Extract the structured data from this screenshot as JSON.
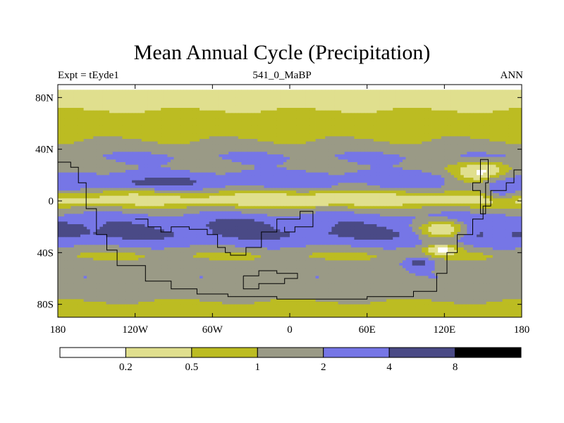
{
  "chart_data": {
    "type": "heatmap",
    "title": "Mean Annual Cycle (Precipitation)",
    "subtitle_left": "Expt = tEyde1",
    "subtitle_center": "541_0_MaBP",
    "subtitle_right": "ANN",
    "x_ticks": [
      "180",
      "120W",
      "60W",
      "0",
      "60E",
      "120E",
      "180"
    ],
    "x_tick_values": [
      -180,
      -120,
      -60,
      0,
      60,
      120,
      180
    ],
    "y_ticks": [
      "80N",
      "40N",
      "0",
      "40S",
      "80S"
    ],
    "y_tick_values": [
      80,
      40,
      0,
      -40,
      -80
    ],
    "xlim": [
      -180,
      180
    ],
    "ylim": [
      -90,
      90
    ],
    "colorbar": {
      "levels": [
        "0.2",
        "0.5",
        "1",
        "2",
        "4",
        "8"
      ],
      "colors": [
        "#ffffff",
        "#e0df8e",
        "#bcbc22",
        "#9a9a86",
        "#7676e6",
        "#4a4a86",
        "#000000"
      ]
    },
    "zonal_profile": [
      {
        "lat": 90,
        "value": 0.15
      },
      {
        "lat": 82,
        "value": 0.3
      },
      {
        "lat": 74,
        "value": 0.42
      },
      {
        "lat": 66,
        "value": 0.6
      },
      {
        "lat": 58,
        "value": 0.7
      },
      {
        "lat": 50,
        "value": 0.85
      },
      {
        "lat": 42,
        "value": 1.3
      },
      {
        "lat": 34,
        "value": 2.2
      },
      {
        "lat": 26,
        "value": 1.6
      },
      {
        "lat": 18,
        "value": 3.2
      },
      {
        "lat": 10,
        "value": 2.0
      },
      {
        "lat": 4,
        "value": 0.5
      },
      {
        "lat": 0,
        "value": 0.3
      },
      {
        "lat": -6,
        "value": 1.2
      },
      {
        "lat": -12,
        "value": 2.6
      },
      {
        "lat": -18,
        "value": 3.5
      },
      {
        "lat": -26,
        "value": 4.6
      },
      {
        "lat": -34,
        "value": 2.4
      },
      {
        "lat": -42,
        "value": 0.9
      },
      {
        "lat": -50,
        "value": 1.4
      },
      {
        "lat": -58,
        "value": 1.8
      },
      {
        "lat": -66,
        "value": 1.5
      },
      {
        "lat": -74,
        "value": 1.1
      },
      {
        "lat": -82,
        "value": 0.9
      },
      {
        "lat": -90,
        "value": 0.7
      }
    ],
    "features": [
      {
        "lon": 0,
        "lat": 0,
        "rlon": 38,
        "rlat": 3,
        "value": 0.15
      },
      {
        "lon": 40,
        "lat": 2,
        "rlon": 70,
        "rlat": 4,
        "value": 0.35
      },
      {
        "lon": 150,
        "lat": 22,
        "rlon": 22,
        "rlat": 8,
        "value": 0.15
      },
      {
        "lon": 118,
        "lat": -22,
        "rlon": 18,
        "rlat": 7,
        "value": 0.2
      },
      {
        "lon": 118,
        "lat": -38,
        "rlon": 12,
        "rlat": 4,
        "value": 0.15
      },
      {
        "lon": -176,
        "lat": -18,
        "rlon": 3,
        "rlat": 2.5,
        "value": 10
      },
      {
        "lon": -168,
        "lat": -22,
        "rlon": 12,
        "rlat": 6,
        "value": 5
      },
      {
        "lon": -40,
        "lat": -18,
        "rlon": 25,
        "rlat": 4,
        "value": 5
      },
      {
        "lon": -100,
        "lat": 14,
        "rlon": 40,
        "rlat": 4,
        "value": 5
      },
      {
        "lon": 100,
        "lat": -48,
        "rlon": 12,
        "rlat": 5,
        "value": 5
      },
      {
        "lon": 165,
        "lat": 10,
        "rlon": 14,
        "rlat": 10,
        "value": 3
      },
      {
        "lon": 160,
        "lat": -22,
        "rlon": 12,
        "rlat": 10,
        "value": 3
      }
    ],
    "land_outlines": [
      {
        "name": "western-continent",
        "points": [
          [
            -180,
            30
          ],
          [
            -170,
            30
          ],
          [
            -170,
            26
          ],
          [
            -164,
            26
          ],
          [
            -164,
            14
          ],
          [
            -158,
            14
          ],
          [
            -158,
            -6
          ],
          [
            -150,
            -6
          ],
          [
            -150,
            -26
          ],
          [
            -142,
            -26
          ],
          [
            -142,
            -38
          ],
          [
            -134,
            -38
          ],
          [
            -134,
            -50
          ],
          [
            -112,
            -50
          ],
          [
            -112,
            -62
          ],
          [
            -92,
            -62
          ],
          [
            -92,
            -68
          ],
          [
            -72,
            -68
          ],
          [
            -72,
            -72
          ],
          [
            -48,
            -72
          ],
          [
            -48,
            -74
          ],
          [
            -10,
            -74
          ],
          [
            -10,
            -76
          ],
          [
            60,
            -76
          ],
          [
            60,
            -74
          ],
          [
            96,
            -74
          ],
          [
            96,
            -70
          ],
          [
            114,
            -70
          ],
          [
            114,
            -56
          ],
          [
            122,
            -56
          ],
          [
            122,
            -40
          ],
          [
            130,
            -40
          ],
          [
            130,
            -26
          ],
          [
            142,
            -26
          ],
          [
            142,
            -14
          ],
          [
            150,
            -14
          ],
          [
            150,
            -4
          ],
          [
            156,
            -4
          ],
          [
            156,
            8
          ],
          [
            168,
            8
          ],
          [
            168,
            14
          ],
          [
            174,
            14
          ],
          [
            174,
            24
          ],
          [
            180,
            24
          ]
        ]
      },
      {
        "name": "inner-outline",
        "points": [
          [
            -120,
            -14
          ],
          [
            -110,
            -14
          ],
          [
            -110,
            -20
          ],
          [
            -100,
            -20
          ],
          [
            -100,
            -24
          ],
          [
            -92,
            -24
          ],
          [
            -92,
            -20
          ],
          [
            -78,
            -20
          ],
          [
            -78,
            -22
          ],
          [
            -64,
            -22
          ],
          [
            -64,
            -26
          ],
          [
            -56,
            -26
          ],
          [
            -56,
            -36
          ],
          [
            -50,
            -36
          ],
          [
            -50,
            -40
          ],
          [
            -46,
            -40
          ],
          [
            -46,
            -42
          ],
          [
            -34,
            -42
          ],
          [
            -34,
            -36
          ],
          [
            -22,
            -36
          ],
          [
            -22,
            -24
          ],
          [
            -10,
            -24
          ],
          [
            -10,
            -14
          ],
          [
            8,
            -14
          ],
          [
            8,
            -8
          ],
          [
            18,
            -8
          ],
          [
            18,
            -20
          ],
          [
            4,
            -20
          ],
          [
            4,
            -24
          ],
          [
            -4,
            -24
          ],
          [
            -4,
            -20
          ]
        ]
      },
      {
        "name": "southern-loop",
        "points": [
          [
            -36,
            -58
          ],
          [
            -24,
            -58
          ],
          [
            -24,
            -54
          ],
          [
            -10,
            -54
          ],
          [
            -10,
            -56
          ],
          [
            6,
            -56
          ],
          [
            6,
            -60
          ],
          [
            -4,
            -60
          ],
          [
            -4,
            -64
          ],
          [
            -24,
            -64
          ],
          [
            -24,
            -68
          ],
          [
            -36,
            -68
          ],
          [
            -36,
            -58
          ]
        ]
      },
      {
        "name": "eastern-island",
        "points": [
          [
            148,
            14
          ],
          [
            148,
            32
          ],
          [
            154,
            32
          ],
          [
            154,
            14
          ],
          [
            152,
            14
          ],
          [
            152,
            -10
          ],
          [
            148,
            -10
          ],
          [
            148,
            8
          ],
          [
            142,
            8
          ],
          [
            142,
            14
          ],
          [
            148,
            14
          ]
        ]
      }
    ]
  }
}
